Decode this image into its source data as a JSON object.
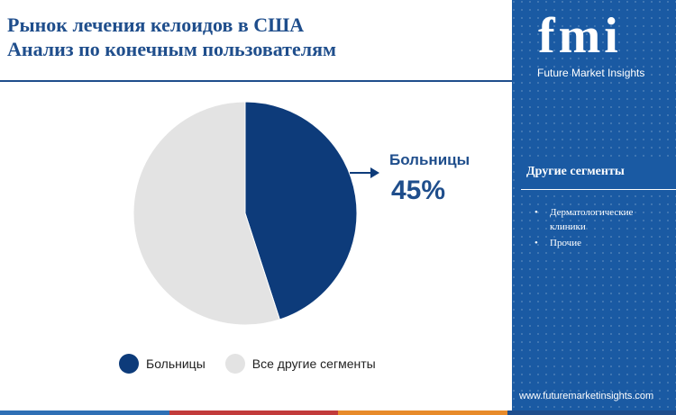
{
  "header": {
    "title_line1": "Рынок лечения келоидов в США",
    "title_line2": "Анализ  по конечным пользователям"
  },
  "sidebar": {
    "logo_text": "fmi",
    "logo_caption": "Future Market Insights",
    "segments_title": "Другие сегменты",
    "segments": [
      "Дерматологические клиники",
      "Прочие"
    ],
    "website": "www.futuremarketinsights.com",
    "background_color": "#1a5aa3"
  },
  "callout": {
    "label": "Больницы",
    "value": "45%"
  },
  "colors": {
    "primary": "#0d3b7a",
    "secondary": "#e3e3e3",
    "title": "#1f4e8c"
  },
  "chart_data": {
    "type": "pie",
    "title": "",
    "labels": [
      "Больницы",
      "Все другие сегменты"
    ],
    "values": [
      45,
      55
    ],
    "colors": [
      "#0d3b7a",
      "#e3e3e3"
    ],
    "start_angle_deg": 0,
    "direction": "clockwise",
    "legend_position": "bottom"
  },
  "bottom_bar_colors": [
    "#2e6fb5",
    "#c23b3b",
    "#e88b2a",
    "#1f4e8c"
  ]
}
